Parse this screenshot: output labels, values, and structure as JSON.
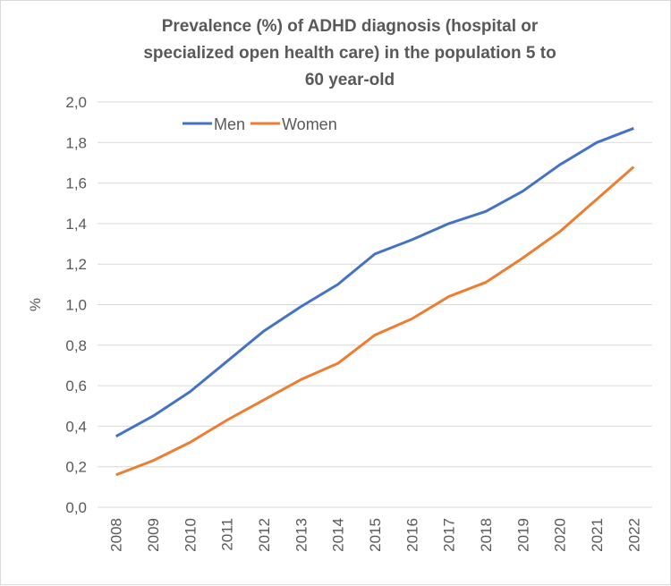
{
  "chart_data": {
    "type": "line",
    "title": "Prevalence (%) of ADHD diagnosis  (hospital or\nspecialized open health care) in the population  5 to\n60 year-old",
    "xlabel": "",
    "ylabel": "%",
    "ylim": [
      0,
      2.0
    ],
    "yticks": [
      "0,0",
      "0,2",
      "0,4",
      "0,6",
      "0,8",
      "1,0",
      "1,2",
      "1,4",
      "1,6",
      "1,8",
      "2,0"
    ],
    "categories": [
      "2008",
      "2009",
      "2010",
      "2011",
      "2012",
      "2013",
      "2014",
      "2015",
      "2016",
      "2017",
      "2018",
      "2019",
      "2020",
      "2021",
      "2022"
    ],
    "grid": true,
    "legend_position": "top-left",
    "series": [
      {
        "name": "Men",
        "color": "#4472C4",
        "values": [
          0.35,
          0.45,
          0.57,
          0.72,
          0.87,
          0.99,
          1.1,
          1.25,
          1.32,
          1.4,
          1.46,
          1.56,
          1.69,
          1.8,
          1.87
        ]
      },
      {
        "name": "Women",
        "color": "#ED7D31",
        "values": [
          0.16,
          0.23,
          0.32,
          0.43,
          0.53,
          0.63,
          0.71,
          0.85,
          0.93,
          1.04,
          1.11,
          1.23,
          1.36,
          1.52,
          1.68
        ]
      }
    ]
  }
}
